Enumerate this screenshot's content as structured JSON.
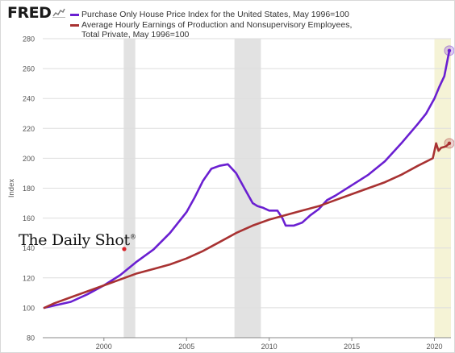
{
  "logo": {
    "text": "FRED",
    "icon": "fred-line-chart-icon"
  },
  "legend": {
    "items": [
      {
        "label": "Purchase Only House Price Index for the United States, May 1996=100",
        "color": "#6a1fd1"
      },
      {
        "label": "Average Hourly Earnings of Production and Nonsupervisory Employees, Total Private, May 1996=100",
        "color": "#a83232"
      }
    ]
  },
  "watermark": {
    "text": "The Daily Shot",
    "mark": "®"
  },
  "colors": {
    "recession": "#e2e2e2",
    "highlight": "#f5f3d6",
    "grid": "#dedede",
    "axis_text": "#555555"
  },
  "chart_data": {
    "type": "line",
    "ylabel": "Index",
    "ylim": [
      80,
      280
    ],
    "yticks": [
      80,
      100,
      120,
      140,
      160,
      180,
      200,
      220,
      240,
      260,
      280
    ],
    "xlim": [
      1996.3,
      2021.0
    ],
    "xticks": [
      2000,
      2005,
      2010,
      2015,
      2020
    ],
    "grid": "horizontal",
    "recessions": [
      [
        2001.2,
        2001.9
      ],
      [
        2007.9,
        2009.5
      ]
    ],
    "highlight_range": [
      2020.0,
      2021.0
    ],
    "series": [
      {
        "name": "Purchase Only House Price Index for the United States, May 1996=100",
        "color": "#6a1fd1",
        "x": [
          1996.4,
          1997,
          1998,
          1999,
          2000,
          2001,
          2002,
          2003,
          2004,
          2005,
          2005.5,
          2006,
          2006.5,
          2007,
          2007.5,
          2008,
          2008.5,
          2009,
          2009.3,
          2009.6,
          2010,
          2010.5,
          2010.8,
          2011,
          2011.5,
          2012,
          2012.5,
          2013,
          2013.5,
          2014,
          2015,
          2016,
          2017,
          2018,
          2019,
          2019.5,
          2019.8,
          2020,
          2020.3,
          2020.6,
          2020.9
        ],
        "values": [
          100,
          101.5,
          104,
          109,
          115,
          122,
          131,
          139,
          150,
          164,
          174,
          185,
          193,
          195,
          196,
          190,
          180,
          170,
          168,
          167,
          165,
          165,
          160,
          155,
          155,
          157,
          162,
          166,
          172,
          175,
          182,
          189,
          198,
          210,
          223,
          230,
          236,
          240,
          248,
          255,
          272
        ]
      },
      {
        "name": "Average Hourly Earnings of Production and Nonsupervisory Employees, Total Private, May 1996=100",
        "color": "#a83232",
        "x": [
          1996.4,
          1997,
          1998,
          1999,
          2000,
          2001,
          2002,
          2003,
          2004,
          2005,
          2006,
          2007,
          2008,
          2009,
          2010,
          2011,
          2012,
          2013,
          2014,
          2015,
          2016,
          2017,
          2018,
          2019,
          2019.9,
          2020.1,
          2020.25,
          2020.4,
          2020.7,
          2020.9
        ],
        "values": [
          100,
          103,
          107,
          111,
          115,
          119,
          123,
          126,
          129,
          133,
          138,
          144,
          150,
          155,
          159,
          162,
          165,
          168,
          172,
          176,
          180,
          184,
          189,
          195,
          200,
          210,
          205,
          207,
          208,
          210
        ]
      }
    ]
  }
}
